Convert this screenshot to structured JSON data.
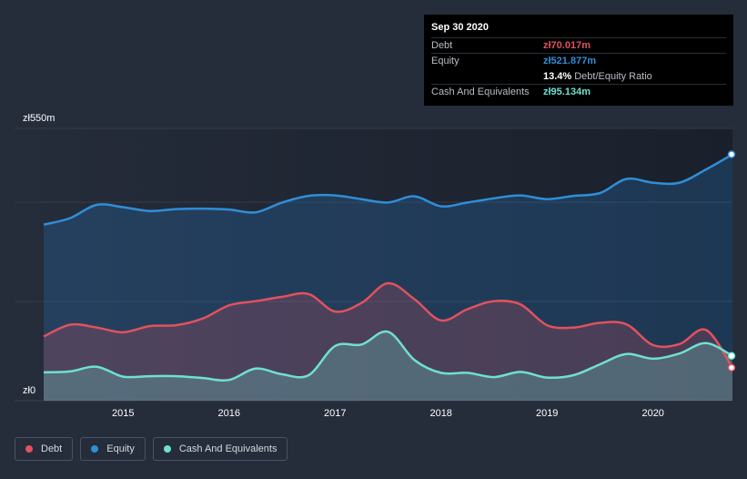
{
  "tooltip": {
    "date": "Sep 30 2020",
    "debt_label": "Debt",
    "debt_value": "zł70.017m",
    "equity_label": "Equity",
    "equity_value": "zł521.877m",
    "ratio_pct": "13.4%",
    "ratio_label": "Debt/Equity Ratio",
    "cash_label": "Cash And Equivalents",
    "cash_value": "zł95.134m"
  },
  "legend": [
    {
      "label": "Debt",
      "color": "#e2515f"
    },
    {
      "label": "Equity",
      "color": "#2f8ed8"
    },
    {
      "label": "Cash And Equivalents",
      "color": "#6fe0d2"
    }
  ],
  "chart_data": {
    "type": "area",
    "y_top_label": "zł550m",
    "y_bottom_label": "zł0",
    "ylim": [
      0,
      550
    ],
    "xlim": [
      2014.25,
      2020.75
    ],
    "x_ticks": [
      2015,
      2016,
      2017,
      2018,
      2019,
      2020
    ],
    "x_tick_labels": [
      "2015",
      "2016",
      "2017",
      "2018",
      "2019",
      "2020"
    ],
    "series": [
      {
        "name": "Equity",
        "color": "#2f8ed8",
        "x": [
          2014.25,
          2014.5,
          2014.75,
          2015.0,
          2015.25,
          2015.5,
          2015.75,
          2016.0,
          2016.25,
          2016.5,
          2016.75,
          2017.0,
          2017.25,
          2017.5,
          2017.75,
          2018.0,
          2018.25,
          2018.5,
          2018.75,
          2019.0,
          2019.25,
          2019.5,
          2019.75,
          2020.0,
          2020.25,
          2020.5,
          2020.75
        ],
        "values": [
          373,
          387,
          415,
          410,
          402,
          406,
          407,
          405,
          399,
          420,
          434,
          435,
          427,
          420,
          433,
          412,
          420,
          429,
          435,
          427,
          434,
          440,
          470,
          462,
          462,
          490,
          522
        ]
      },
      {
        "name": "Debt",
        "color": "#e2515f",
        "x": [
          2014.25,
          2014.5,
          2014.75,
          2015.0,
          2015.25,
          2015.5,
          2015.75,
          2016.0,
          2016.25,
          2016.5,
          2016.75,
          2017.0,
          2017.25,
          2017.5,
          2017.75,
          2018.0,
          2018.25,
          2018.5,
          2018.75,
          2019.0,
          2019.25,
          2019.5,
          2019.75,
          2020.0,
          2020.25,
          2020.5,
          2020.75
        ],
        "values": [
          136,
          161,
          155,
          145,
          158,
          160,
          174,
          202,
          211,
          220,
          226,
          189,
          207,
          249,
          215,
          170,
          194,
          211,
          204,
          160,
          155,
          165,
          162,
          118,
          120,
          150,
          70
        ]
      },
      {
        "name": "Cash And Equivalents",
        "color": "#6fe0d2",
        "x": [
          2014.25,
          2014.5,
          2014.75,
          2015.0,
          2015.25,
          2015.5,
          2015.75,
          2016.0,
          2016.25,
          2016.5,
          2016.75,
          2017.0,
          2017.25,
          2017.5,
          2017.75,
          2018.0,
          2018.25,
          2018.5,
          2018.75,
          2019.0,
          2019.25,
          2019.5,
          2019.75,
          2020.0,
          2020.25,
          2020.5,
          2020.75
        ],
        "values": [
          60,
          62,
          72,
          51,
          52,
          52,
          48,
          44,
          68,
          56,
          54,
          116,
          119,
          146,
          86,
          59,
          59,
          50,
          61,
          49,
          54,
          77,
          99,
          89,
          100,
          122,
          95
        ]
      }
    ]
  }
}
